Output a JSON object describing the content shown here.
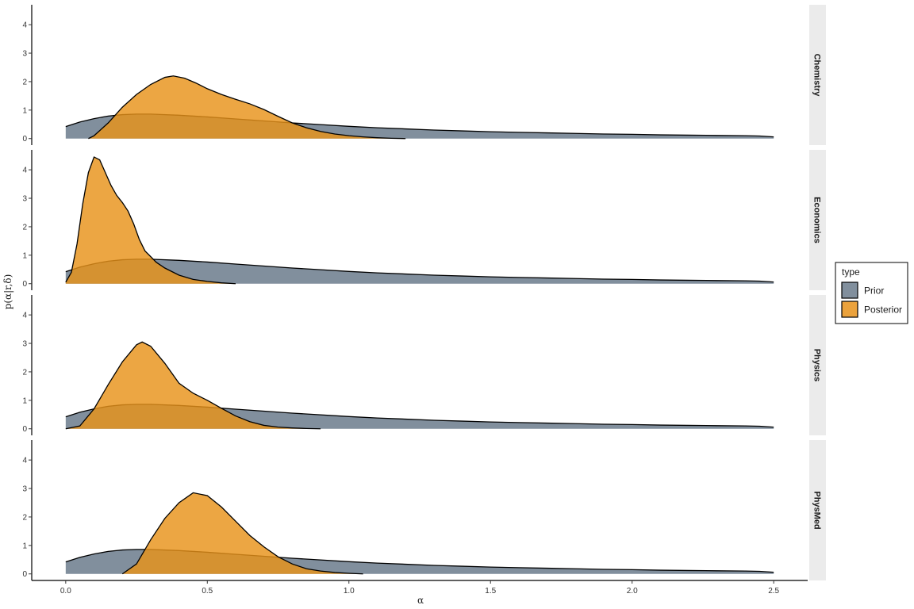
{
  "chart_data": {
    "type": "area",
    "facet_layout": "rows",
    "xlabel": "α",
    "ylabel": "p(α|r,δ)",
    "xlim": [
      -0.12,
      2.62
    ],
    "ylim": [
      -0.23,
      4.7
    ],
    "x_ticks": [
      0.0,
      0.5,
      1.0,
      1.5,
      2.0,
      2.5
    ],
    "x_tick_labels": [
      "0.0",
      "0.5",
      "1.0",
      "1.5",
      "2.0",
      "2.5"
    ],
    "y_ticks": [
      0,
      1,
      2,
      3,
      4
    ],
    "grid": false,
    "legend": {
      "title": "type",
      "placement": "right",
      "entries": [
        {
          "label": "Prior",
          "color": "#6b7b8c"
        },
        {
          "label": "Posterior",
          "color": "#e8921a"
        }
      ]
    },
    "colors": {
      "prior": "#6b7b8c",
      "posterior": "#e8921a",
      "outline": "#000000",
      "strip": "#ebebeb"
    },
    "prior": {
      "x": [
        0.0,
        0.05,
        0.1,
        0.15,
        0.2,
        0.25,
        0.3,
        0.4,
        0.5,
        0.6,
        0.7,
        0.8,
        0.9,
        1.0,
        1.1,
        1.2,
        1.3,
        1.4,
        1.5,
        1.6,
        1.7,
        1.8,
        1.9,
        2.0,
        2.1,
        2.2,
        2.3,
        2.4,
        2.45,
        2.5
      ],
      "y": [
        0.42,
        0.58,
        0.7,
        0.79,
        0.84,
        0.86,
        0.86,
        0.82,
        0.76,
        0.69,
        0.62,
        0.55,
        0.49,
        0.43,
        0.38,
        0.34,
        0.3,
        0.27,
        0.24,
        0.22,
        0.2,
        0.18,
        0.16,
        0.15,
        0.13,
        0.12,
        0.11,
        0.1,
        0.09,
        0.06
      ]
    },
    "facets": [
      {
        "label": "Chemistry",
        "posterior": {
          "x": [
            0.08,
            0.1,
            0.15,
            0.2,
            0.25,
            0.3,
            0.35,
            0.38,
            0.42,
            0.46,
            0.5,
            0.55,
            0.6,
            0.65,
            0.7,
            0.75,
            0.8,
            0.85,
            0.9,
            0.95,
            1.0,
            1.05,
            1.1,
            1.15,
            1.2
          ],
          "y": [
            0.0,
            0.1,
            0.55,
            1.1,
            1.55,
            1.9,
            2.15,
            2.2,
            2.12,
            1.95,
            1.75,
            1.55,
            1.38,
            1.22,
            1.02,
            0.78,
            0.55,
            0.38,
            0.25,
            0.16,
            0.1,
            0.06,
            0.03,
            0.01,
            0.0
          ]
        }
      },
      {
        "label": "Economics",
        "posterior": {
          "x": [
            0.0,
            0.02,
            0.04,
            0.06,
            0.08,
            0.1,
            0.12,
            0.14,
            0.16,
            0.18,
            0.2,
            0.22,
            0.24,
            0.26,
            0.28,
            0.3,
            0.32,
            0.35,
            0.4,
            0.45,
            0.5,
            0.55,
            0.6
          ],
          "y": [
            0.05,
            0.4,
            1.4,
            2.8,
            3.9,
            4.45,
            4.35,
            3.9,
            3.45,
            3.1,
            2.85,
            2.55,
            2.1,
            1.55,
            1.15,
            0.95,
            0.75,
            0.55,
            0.3,
            0.15,
            0.08,
            0.03,
            0.0
          ]
        }
      },
      {
        "label": "Physics",
        "posterior": {
          "x": [
            0.0,
            0.05,
            0.1,
            0.15,
            0.2,
            0.25,
            0.27,
            0.3,
            0.35,
            0.4,
            0.45,
            0.5,
            0.55,
            0.6,
            0.65,
            0.7,
            0.75,
            0.8,
            0.85,
            0.9
          ],
          "y": [
            0.0,
            0.1,
            0.7,
            1.55,
            2.35,
            2.95,
            3.05,
            2.9,
            2.3,
            1.6,
            1.25,
            1.0,
            0.72,
            0.45,
            0.25,
            0.12,
            0.06,
            0.03,
            0.01,
            0.0
          ]
        }
      },
      {
        "label": "PhysMed",
        "posterior": {
          "x": [
            0.2,
            0.25,
            0.3,
            0.35,
            0.4,
            0.45,
            0.5,
            0.55,
            0.6,
            0.65,
            0.7,
            0.75,
            0.8,
            0.85,
            0.9,
            0.95,
            1.0,
            1.05
          ],
          "y": [
            0.0,
            0.35,
            1.2,
            1.95,
            2.5,
            2.85,
            2.75,
            2.35,
            1.85,
            1.35,
            0.95,
            0.6,
            0.35,
            0.18,
            0.1,
            0.05,
            0.02,
            0.0
          ]
        }
      }
    ]
  }
}
